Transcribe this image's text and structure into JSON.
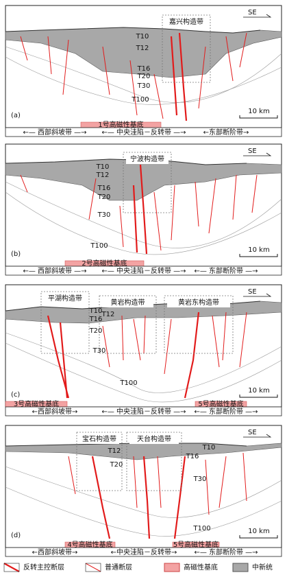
{
  "panels": [
    {
      "label": "(a)",
      "direction": "SE",
      "structures": [
        "嘉兴构造带"
      ],
      "horizons": [
        "T10",
        "T12",
        "T16",
        "T20",
        "T30",
        "T100"
      ],
      "scale": "10 km",
      "basements": [
        "1号高磁性基底"
      ],
      "zones": [
        "←— 西部斜坡带 —→",
        "←— 中央洼陷－反转带 —→",
        "←东部断阶带→"
      ]
    },
    {
      "label": "(b)",
      "direction": "SE",
      "structures": [
        "宁波构造带"
      ],
      "horizons": [
        "T10",
        "T12",
        "T16",
        "T20",
        "T30",
        "T100"
      ],
      "scale": "10 km",
      "basements": [
        "2号高磁性基底"
      ],
      "zones": [
        "←— 西部斜坡带 —→",
        "←— 中央洼陷－反转带 —→",
        "←— 东部断阶带 —→"
      ]
    },
    {
      "label": "(c)",
      "direction": "SE",
      "structures": [
        "平湖构造带",
        "黄岩构造带",
        "黄岩东构造带"
      ],
      "horizons": [
        "T10",
        "T12",
        "T16",
        "T20",
        "T30",
        "T100"
      ],
      "scale": "10 km",
      "basements": [
        "3号高磁性基底",
        "5号高磁性基底"
      ],
      "zones": [
        "←西部斜坡带→",
        "←— 中央洼陷－反转带 —→",
        "←— 东部断阶带 —→"
      ]
    },
    {
      "label": "(d)",
      "direction": "SE",
      "structures": [
        "宝石构造带",
        "天台构造带"
      ],
      "horizons": [
        "T10",
        "T12",
        "T16",
        "T20",
        "T30",
        "T100"
      ],
      "scale": "10 km",
      "basements": [
        "4号高磁性基底",
        "5号高磁性基底"
      ],
      "zones": [
        "←西部斜坡带→",
        "←中央洼陷－反转带→",
        "←— 东部断阶带 —→"
      ]
    }
  ],
  "legend": [
    "反转主控断层",
    "普通断层",
    "高磁性基底",
    "中新统"
  ]
}
